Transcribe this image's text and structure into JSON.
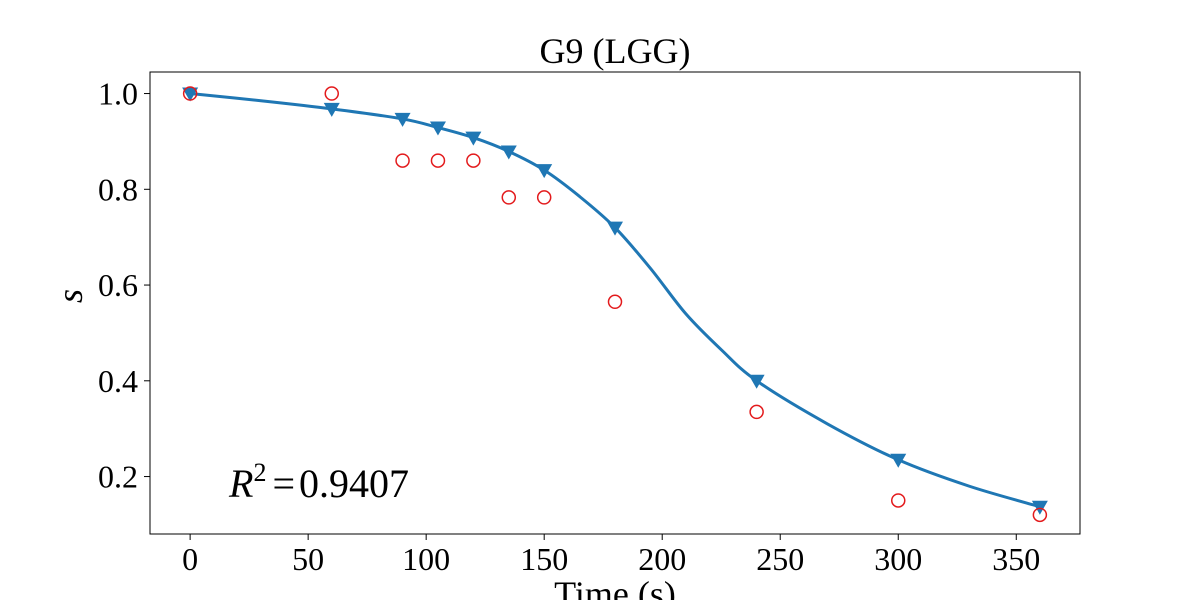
{
  "chart_data": {
    "type": "scatter",
    "title": "G9 (LGG)",
    "xlabel": "Time (s)",
    "ylabel": "s",
    "xlim": [
      -17,
      377
    ],
    "ylim": [
      0.08,
      1.045
    ],
    "xticks": [
      0,
      50,
      100,
      150,
      200,
      250,
      300,
      350
    ],
    "yticks": [
      0.2,
      0.4,
      0.6,
      0.8,
      1.0
    ],
    "xtick_labels": [
      "0",
      "50",
      "100",
      "150",
      "200",
      "250",
      "300",
      "350"
    ],
    "ytick_labels": [
      "0.2",
      "0.4",
      "0.6",
      "0.8",
      "1.0"
    ],
    "annotation": {
      "symbol": "R",
      "exponent": "2",
      "operator": "=",
      "value": "0.9407"
    },
    "colors": {
      "fit": "#1f77b4",
      "observed": "#e31a1c"
    },
    "grid": false,
    "series": [
      {
        "marker": "triangle-down",
        "x": [
          0,
          60,
          90,
          105,
          120,
          135,
          150,
          180,
          240,
          300,
          360
        ],
        "y": [
          1.0,
          0.968,
          0.947,
          0.929,
          0.908,
          0.879,
          0.84,
          0.72,
          0.4,
          0.235,
          0.137
        ]
      },
      {
        "marker": "open-circle",
        "x": [
          0,
          60,
          90,
          105,
          120,
          135,
          150,
          180,
          240,
          300,
          360
        ],
        "y": [
          1.0,
          1.0,
          0.86,
          0.86,
          0.86,
          0.783,
          0.783,
          0.565,
          0.335,
          0.15,
          0.12
        ]
      }
    ],
    "fit_curve": {
      "x": [
        0,
        30,
        60,
        90,
        105,
        120,
        135,
        150,
        165,
        180,
        195,
        210,
        225,
        240,
        270,
        300,
        330,
        360
      ],
      "y": [
        1.0,
        0.985,
        0.968,
        0.947,
        0.929,
        0.908,
        0.879,
        0.84,
        0.785,
        0.72,
        0.635,
        0.54,
        0.465,
        0.4,
        0.31,
        0.235,
        0.18,
        0.137
      ]
    }
  }
}
